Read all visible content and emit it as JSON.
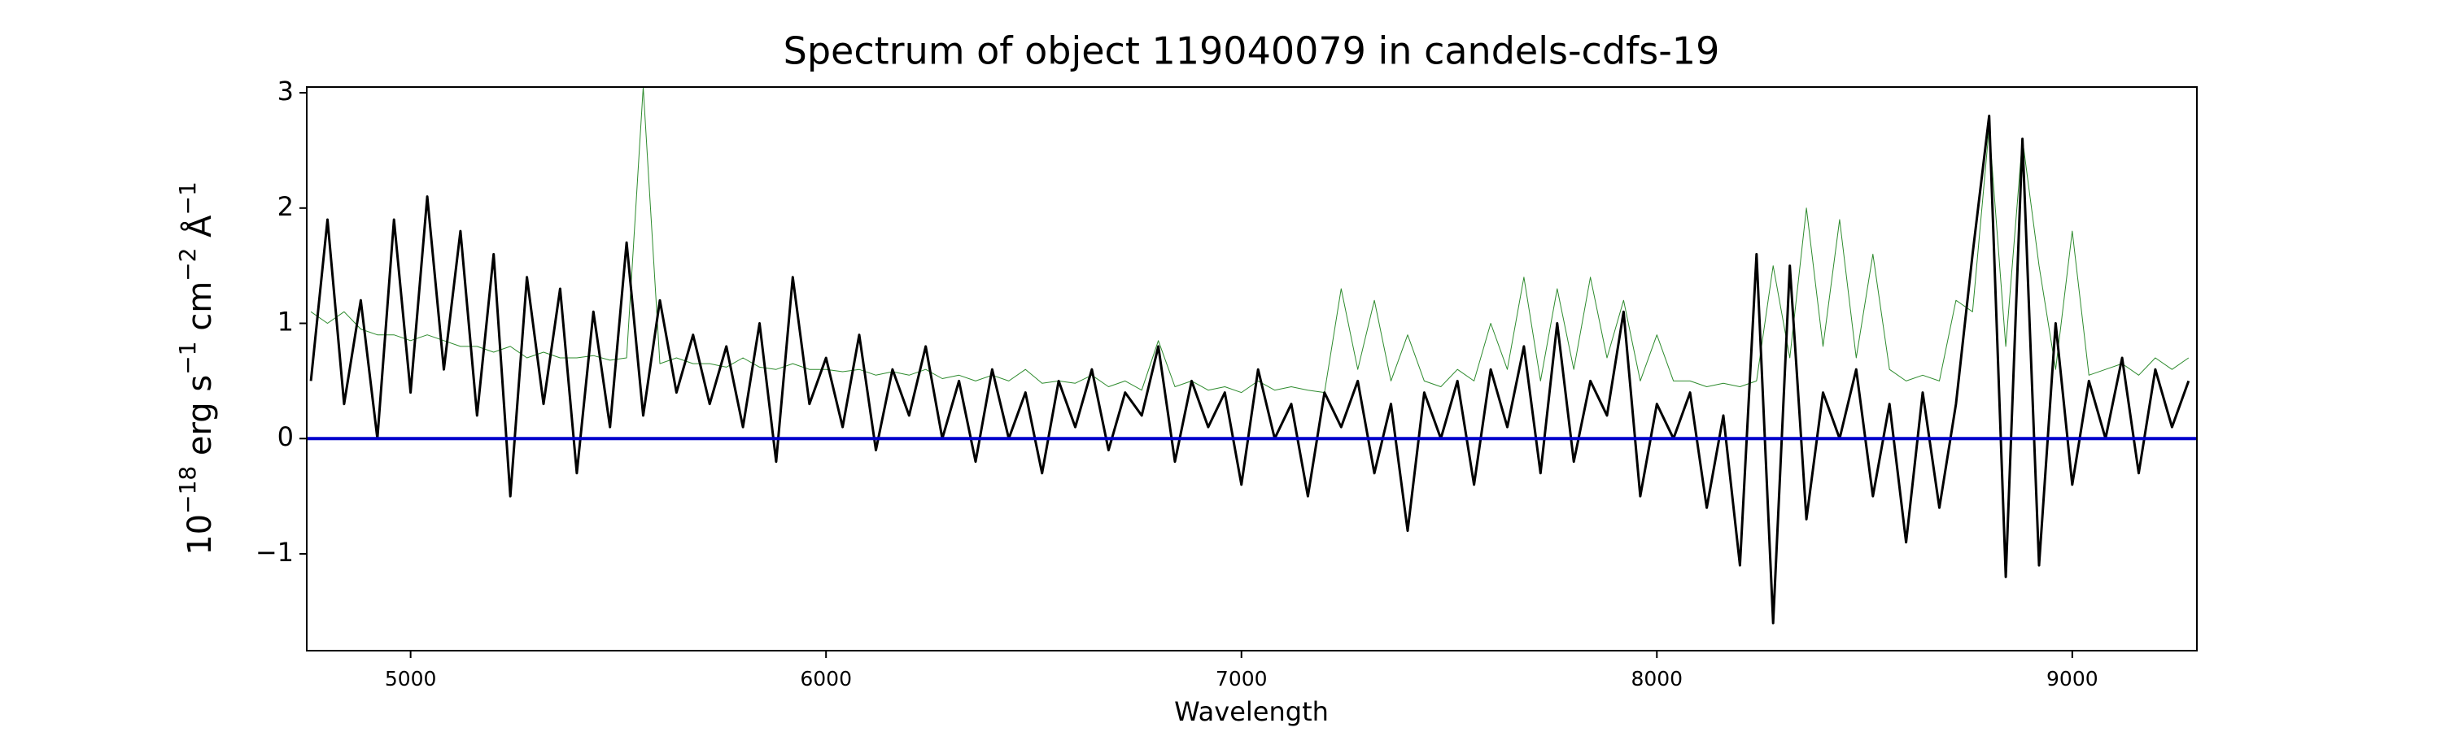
{
  "chart_data": {
    "type": "line",
    "title": "Spectrum of object 119040079 in candels-cdfs-19",
    "x_label": "Wavelength",
    "y_label": [
      "10",
      "−18",
      " erg s",
      "−1",
      " cm",
      "−2",
      " Å",
      "−1"
    ],
    "xlim": [
      4750,
      9300
    ],
    "ylim": [
      -1.84,
      3.05
    ],
    "xticks": [
      5000,
      6000,
      7000,
      8000,
      9000
    ],
    "yticks": [
      {
        "value": -1,
        "label": "−1"
      },
      0,
      1,
      2,
      3
    ],
    "grid": false,
    "x": [
      4760,
      4800,
      4840,
      4880,
      4920,
      4960,
      5000,
      5040,
      5080,
      5120,
      5160,
      5200,
      5240,
      5280,
      5320,
      5360,
      5400,
      5440,
      5480,
      5520,
      5560,
      5600,
      5640,
      5680,
      5720,
      5760,
      5800,
      5840,
      5880,
      5920,
      5960,
      6000,
      6040,
      6080,
      6120,
      6160,
      6200,
      6240,
      6280,
      6320,
      6360,
      6400,
      6440,
      6480,
      6520,
      6560,
      6600,
      6640,
      6680,
      6720,
      6760,
      6800,
      6840,
      6880,
      6920,
      6960,
      7000,
      7040,
      7080,
      7120,
      7160,
      7200,
      7240,
      7280,
      7320,
      7360,
      7400,
      7440,
      7480,
      7520,
      7560,
      7600,
      7640,
      7680,
      7720,
      7760,
      7800,
      7840,
      7880,
      7920,
      7960,
      8000,
      8040,
      8080,
      8120,
      8160,
      8200,
      8240,
      8280,
      8320,
      8360,
      8400,
      8440,
      8480,
      8520,
      8560,
      8600,
      8640,
      8680,
      8720,
      8760,
      8800,
      8840,
      8880,
      8920,
      8960,
      9000,
      9040,
      9080,
      9120,
      9160,
      9200,
      9240,
      9280
    ],
    "series": [
      {
        "color": "#2e8b2e",
        "width": 1,
        "values": [
          1.1,
          1.0,
          1.1,
          0.95,
          0.9,
          0.9,
          0.85,
          0.9,
          0.85,
          0.8,
          0.8,
          0.75,
          0.8,
          0.7,
          0.75,
          0.7,
          0.7,
          0.72,
          0.68,
          0.7,
          3.05,
          0.65,
          0.7,
          0.65,
          0.65,
          0.62,
          0.7,
          0.62,
          0.6,
          0.65,
          0.6,
          0.6,
          0.58,
          0.6,
          0.55,
          0.58,
          0.55,
          0.6,
          0.52,
          0.55,
          0.5,
          0.55,
          0.5,
          0.6,
          0.48,
          0.5,
          0.48,
          0.55,
          0.45,
          0.5,
          0.42,
          0.85,
          0.45,
          0.5,
          0.42,
          0.45,
          0.4,
          0.5,
          0.42,
          0.45,
          0.42,
          0.4,
          1.3,
          0.6,
          1.2,
          0.5,
          0.9,
          0.5,
          0.45,
          0.6,
          0.5,
          1.0,
          0.6,
          1.4,
          0.5,
          1.3,
          0.6,
          1.4,
          0.7,
          1.2,
          0.5,
          0.9,
          0.5,
          0.5,
          0.45,
          0.48,
          0.45,
          0.5,
          1.5,
          0.7,
          2.0,
          0.8,
          1.9,
          0.7,
          1.6,
          0.6,
          0.5,
          0.55,
          0.5,
          1.2,
          1.1,
          2.7,
          0.8,
          2.6,
          1.5,
          0.6,
          1.8,
          0.55,
          0.6,
          0.65,
          0.55,
          0.7,
          0.6,
          0.7
        ]
      },
      {
        "color": "#000000",
        "width": 3,
        "values": [
          0.5,
          1.9,
          0.3,
          1.2,
          0.0,
          1.9,
          0.4,
          2.1,
          0.6,
          1.8,
          0.2,
          1.6,
          -0.5,
          1.4,
          0.3,
          1.3,
          -0.3,
          1.1,
          0.1,
          1.7,
          0.2,
          1.2,
          0.4,
          0.9,
          0.3,
          0.8,
          0.1,
          1.0,
          -0.2,
          1.4,
          0.3,
          0.7,
          0.1,
          0.9,
          -0.1,
          0.6,
          0.2,
          0.8,
          0.0,
          0.5,
          -0.2,
          0.6,
          0.0,
          0.4,
          -0.3,
          0.5,
          0.1,
          0.6,
          -0.1,
          0.4,
          0.2,
          0.8,
          -0.2,
          0.5,
          0.1,
          0.4,
          -0.4,
          0.6,
          0.0,
          0.3,
          -0.5,
          0.4,
          0.1,
          0.5,
          -0.3,
          0.3,
          -0.8,
          0.4,
          0.0,
          0.5,
          -0.4,
          0.6,
          0.1,
          0.8,
          -0.3,
          1.0,
          -0.2,
          0.5,
          0.2,
          1.1,
          -0.5,
          0.3,
          0.0,
          0.4,
          -0.6,
          0.2,
          -1.1,
          1.6,
          -1.6,
          1.5,
          -0.7,
          0.4,
          0.0,
          0.6,
          -0.5,
          0.3,
          -0.9,
          0.4,
          -0.6,
          0.3,
          1.6,
          2.8,
          -1.2,
          2.6,
          -1.1,
          1.0,
          -0.4,
          0.5,
          0.0,
          0.7,
          -0.3,
          0.6,
          0.1,
          0.5
        ]
      }
    ],
    "hline": {
      "value": 0,
      "color": "#0000cc",
      "width": 4
    }
  }
}
